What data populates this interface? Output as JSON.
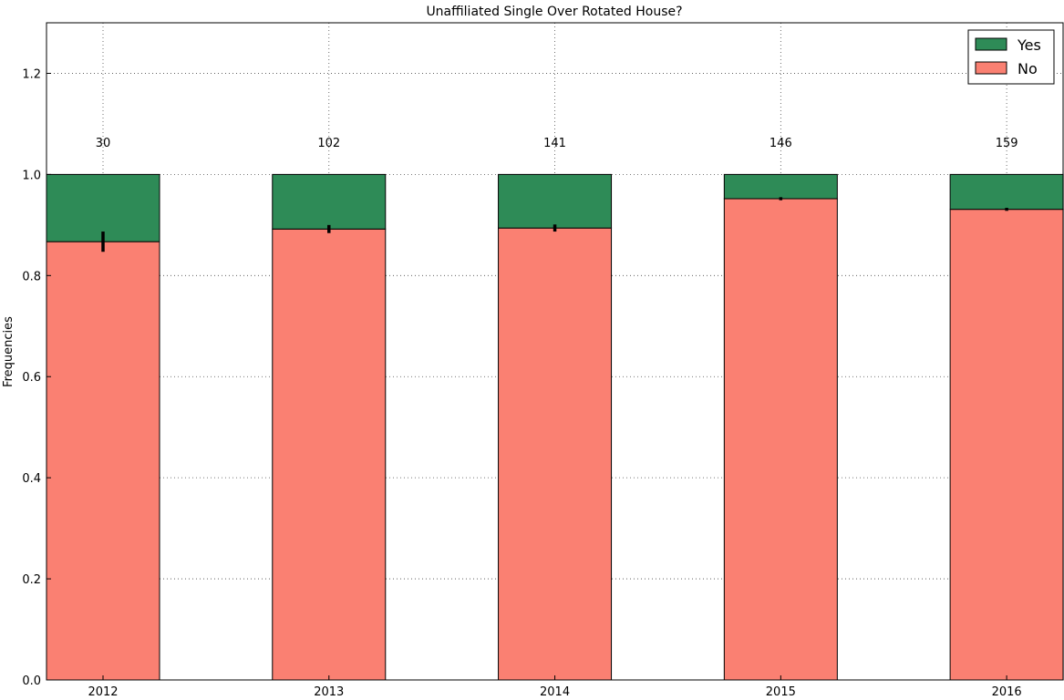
{
  "chart_data": {
    "type": "bar",
    "stacked": true,
    "title": "Unaffiliated Single Over Rotated House?",
    "xlabel": "",
    "ylabel": "Frequencies",
    "categories": [
      "2012",
      "2013",
      "2014",
      "2015",
      "2016"
    ],
    "counts": [
      "30",
      "102",
      "141",
      "146",
      "159"
    ],
    "series": [
      {
        "name": "No",
        "values": [
          0.867,
          0.892,
          0.894,
          0.952,
          0.931
        ],
        "color": "#fa8072",
        "error": [
          0.02,
          0.008,
          0.007,
          0.003,
          0.003
        ]
      },
      {
        "name": "Yes",
        "values": [
          0.133,
          0.108,
          0.106,
          0.048,
          0.069
        ],
        "color": "#2e8b57"
      }
    ],
    "yticks": [
      "0.0",
      "0.2",
      "0.4",
      "0.6",
      "0.8",
      "1.0",
      "1.2"
    ],
    "ylim": [
      0,
      1.3
    ],
    "grid": true,
    "legend_position": "top-right"
  }
}
